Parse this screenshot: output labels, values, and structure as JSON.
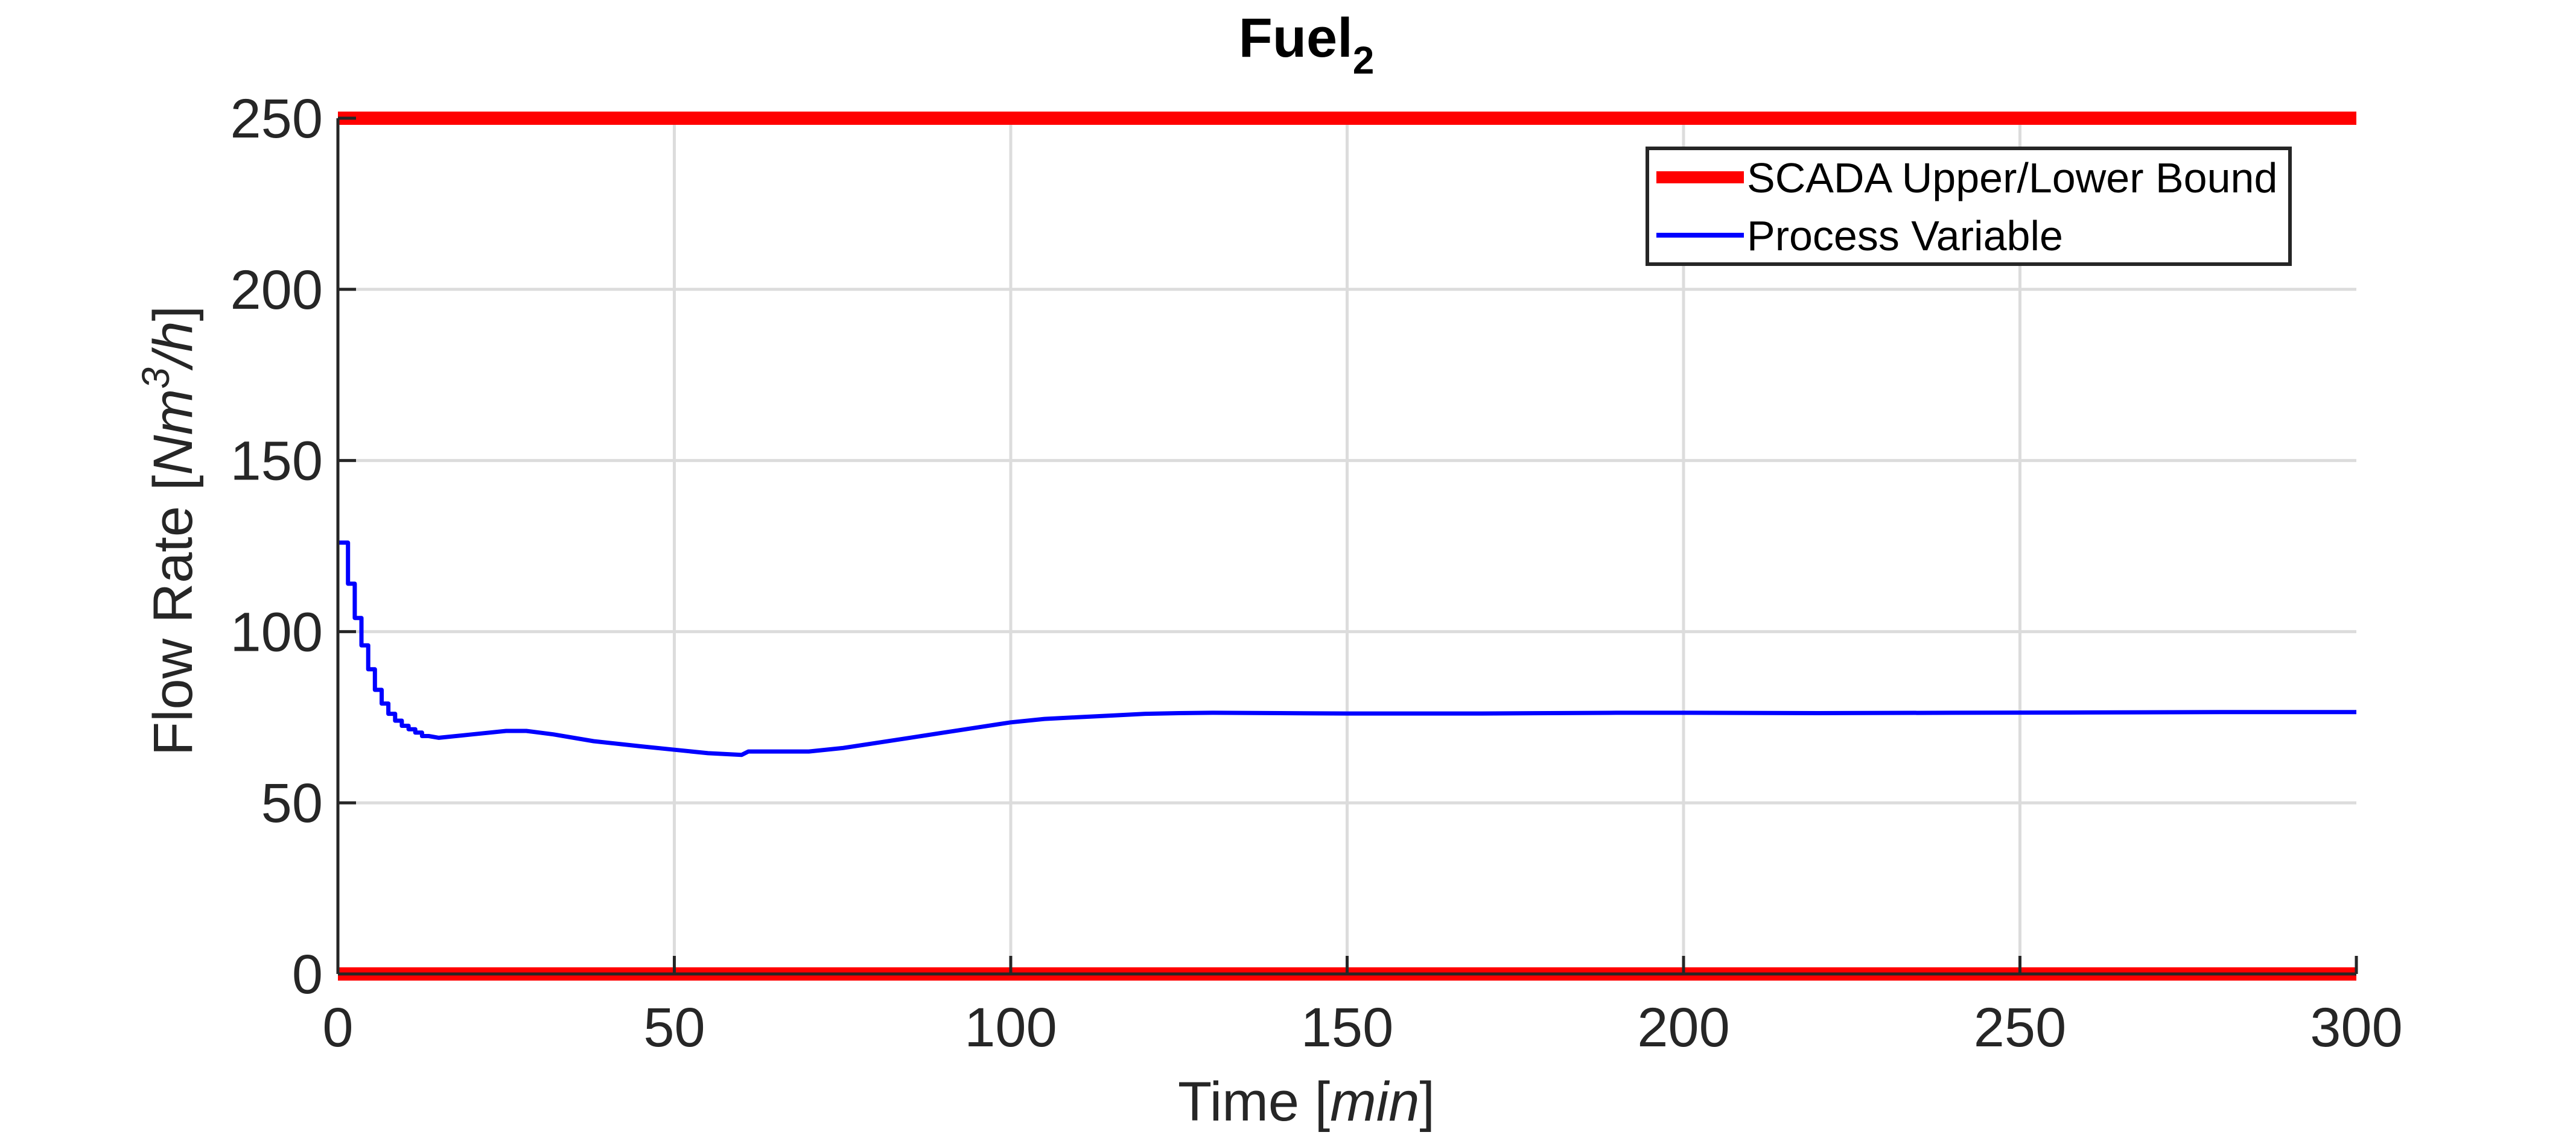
{
  "chart_data": {
    "type": "line",
    "title": "Fuel",
    "title_subscript": "2",
    "xlabel": "Time",
    "xlabel_unit": "min",
    "ylabel": "Flow Rate",
    "ylabel_unit": "Nm",
    "ylabel_unit_superscript": "3",
    "ylabel_unit_suffix": "/h",
    "xlim": [
      0,
      300
    ],
    "ylim": [
      0,
      250
    ],
    "xticks": [
      0,
      50,
      100,
      150,
      200,
      250,
      300
    ],
    "yticks": [
      0,
      50,
      100,
      150,
      200,
      250
    ],
    "grid": true,
    "legend_position": "top-right",
    "colors": {
      "bound": "#ff0000",
      "process": "#0000ff"
    },
    "series": [
      {
        "name": "SCADA Upper/Lower Bound",
        "kind": "bounds",
        "color": "#ff0000",
        "upper": 250,
        "lower": 0,
        "x": [
          0,
          300
        ]
      },
      {
        "name": "Process Variable",
        "kind": "line",
        "color": "#0000ff",
        "x": [
          0,
          1.5,
          1.5,
          2.5,
          2.5,
          3.5,
          3.5,
          4.5,
          4.5,
          5.5,
          5.5,
          6.5,
          6.5,
          7.5,
          7.5,
          8.5,
          8.5,
          9.5,
          9.5,
          10.5,
          10.5,
          11.5,
          11.5,
          12.5,
          12.5,
          13.5,
          15,
          20,
          25,
          28,
          32,
          38,
          45,
          50,
          55,
          60,
          61,
          65,
          70,
          75,
          80,
          85,
          90,
          95,
          100,
          105,
          110,
          115,
          120,
          125,
          130,
          140,
          150,
          160,
          170,
          180,
          190,
          200,
          220,
          240,
          260,
          280,
          300
        ],
        "y": [
          126,
          126,
          114,
          114,
          104,
          104,
          96,
          96,
          89,
          89,
          83,
          83,
          79,
          79,
          76,
          76,
          74,
          74,
          72.5,
          72.5,
          71.5,
          71.5,
          70.5,
          70.5,
          69.5,
          69.5,
          69,
          70,
          71,
          71,
          70,
          68,
          66.5,
          65.5,
          64.5,
          64,
          65,
          65,
          65,
          66,
          67.5,
          69,
          70.5,
          72,
          73.5,
          74.5,
          75,
          75.5,
          76,
          76.2,
          76.3,
          76.2,
          76.1,
          76.1,
          76.1,
          76.2,
          76.3,
          76.3,
          76.2,
          76.3,
          76.4,
          76.5,
          76.5
        ]
      }
    ]
  }
}
